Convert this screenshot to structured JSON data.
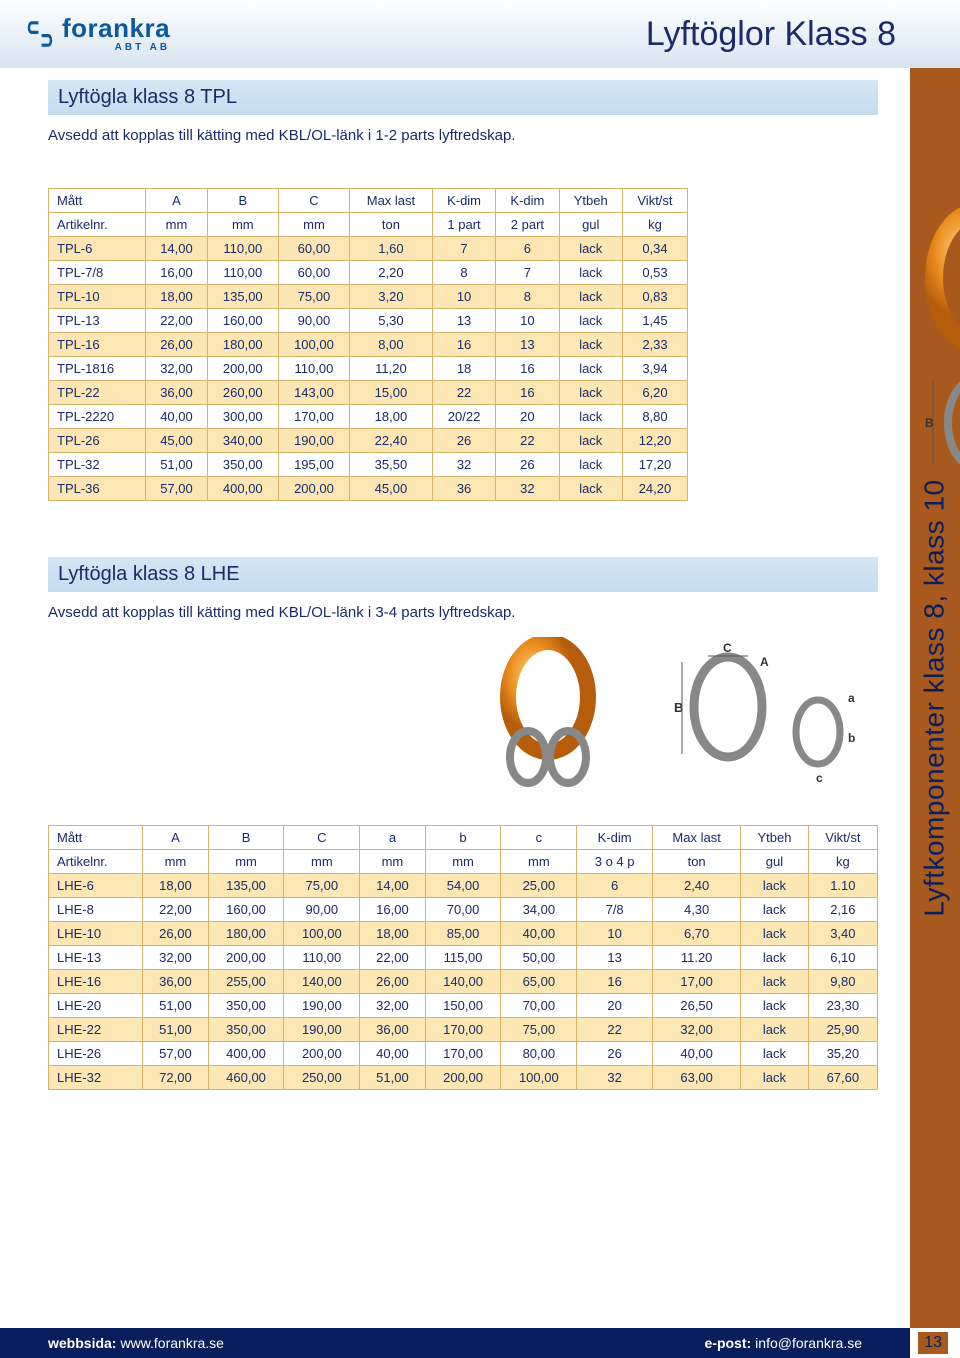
{
  "header": {
    "logo_main": "forankra",
    "logo_sub": "ABT AB",
    "page_title": "Lyftöglor Klass 8"
  },
  "side_tab": "Lyftkomponenter klass 8, klass 10",
  "section1": {
    "title": "Lyftögla klass 8 TPL",
    "desc": "Avsedd att kopplas till kätting med KBL/OL-länk i 1-2 parts lyftredskap.",
    "table": {
      "header": [
        "Mått",
        "A",
        "B",
        "C",
        "Max last",
        "K-dim",
        "K-dim",
        "Ytbeh",
        "Vikt/st"
      ],
      "units": [
        "Artikelnr.",
        "mm",
        "mm",
        "mm",
        "ton",
        "1 part",
        "2 part",
        "gul",
        "kg"
      ],
      "rows": [
        [
          "TPL-6",
          "14,00",
          "110,00",
          "60,00",
          "1,60",
          "7",
          "6",
          "lack",
          "0,34"
        ],
        [
          "TPL-7/8",
          "16,00",
          "110,00",
          "60,00",
          "2,20",
          "8",
          "7",
          "lack",
          "0,53"
        ],
        [
          "TPL-10",
          "18,00",
          "135,00",
          "75,00",
          "3,20",
          "10",
          "8",
          "lack",
          "0,83"
        ],
        [
          "TPL-13",
          "22,00",
          "160,00",
          "90,00",
          "5,30",
          "13",
          "10",
          "lack",
          "1,45"
        ],
        [
          "TPL-16",
          "26,00",
          "180,00",
          "100,00",
          "8,00",
          "16",
          "13",
          "lack",
          "2,33"
        ],
        [
          "TPL-1816",
          "32,00",
          "200,00",
          "110,00",
          "11,20",
          "18",
          "16",
          "lack",
          "3,94"
        ],
        [
          "TPL-22",
          "36,00",
          "260,00",
          "143,00",
          "15,00",
          "22",
          "16",
          "lack",
          "6,20"
        ],
        [
          "TPL-2220",
          "40,00",
          "300,00",
          "170,00",
          "18,00",
          "20/22",
          "20",
          "lack",
          "8,80"
        ],
        [
          "TPL-26",
          "45,00",
          "340,00",
          "190,00",
          "22,40",
          "26",
          "22",
          "lack",
          "12,20"
        ],
        [
          "TPL-32",
          "51,00",
          "350,00",
          "195,00",
          "35,50",
          "32",
          "26",
          "lack",
          "17,20"
        ],
        [
          "TPL-36",
          "57,00",
          "400,00",
          "200,00",
          "45,00",
          "36",
          "32",
          "lack",
          "24,20"
        ]
      ],
      "odd_bg": "#fbe6b4",
      "even_bg": "#ffffff",
      "border_color": "#d6b36a",
      "text_color": "#1a2a6a"
    }
  },
  "section2": {
    "title": "Lyftögla klass 8 LHE",
    "desc": "Avsedd att kopplas till kätting med KBL/OL-länk i 3-4 parts lyftredskap.",
    "table": {
      "header": [
        "Mått",
        "A",
        "B",
        "C",
        "a",
        "b",
        "c",
        "K-dim",
        "Max last",
        "Ytbeh",
        "Vikt/st"
      ],
      "units": [
        "Artikelnr.",
        "mm",
        "mm",
        "mm",
        "mm",
        "mm",
        "mm",
        "3 o 4 p",
        "ton",
        "gul",
        "kg"
      ],
      "rows": [
        [
          "LHE-6",
          "18,00",
          "135,00",
          "75,00",
          "14,00",
          "54,00",
          "25,00",
          "6",
          "2,40",
          "lack",
          "1.10"
        ],
        [
          "LHE-8",
          "22,00",
          "160,00",
          "90,00",
          "16,00",
          "70,00",
          "34,00",
          "7/8",
          "4,30",
          "lack",
          "2,16"
        ],
        [
          "LHE-10",
          "26,00",
          "180,00",
          "100,00",
          "18,00",
          "85,00",
          "40,00",
          "10",
          "6,70",
          "lack",
          "3,40"
        ],
        [
          "LHE-13",
          "32,00",
          "200,00",
          "110,00",
          "22,00",
          "115,00",
          "50,00",
          "13",
          "11.20",
          "lack",
          "6,10"
        ],
        [
          "LHE-16",
          "36,00",
          "255,00",
          "140,00",
          "26,00",
          "140,00",
          "65,00",
          "16",
          "17,00",
          "lack",
          "9,80"
        ],
        [
          "LHE-20",
          "51,00",
          "350,00",
          "190,00",
          "32,00",
          "150,00",
          "70,00",
          "20",
          "26,50",
          "lack",
          "23,30"
        ],
        [
          "LHE-22",
          "51,00",
          "350,00",
          "190,00",
          "36,00",
          "170,00",
          "75,00",
          "22",
          "32,00",
          "lack",
          "25,90"
        ],
        [
          "LHE-26",
          "57,00",
          "400,00",
          "200,00",
          "40,00",
          "170,00",
          "80,00",
          "26",
          "40,00",
          "lack",
          "35,20"
        ],
        [
          "LHE-32",
          "72,00",
          "460,00",
          "250,00",
          "51,00",
          "200,00",
          "100,00",
          "32",
          "63,00",
          "lack",
          "67,60"
        ]
      ]
    }
  },
  "footer": {
    "web_label": "webbsida:",
    "web_url": "www.forankra.se",
    "email_label": "e-post:",
    "email": "info@forankra.se",
    "page_num": "13"
  },
  "colors": {
    "brand_blue": "#0a5aa0",
    "deep_blue": "#1a2a6a",
    "side_bg": "#a85a1e",
    "header_grad_end": "#d6e4ee",
    "section_grad": "#c3ddef",
    "ring_orange": "#e8891a"
  }
}
